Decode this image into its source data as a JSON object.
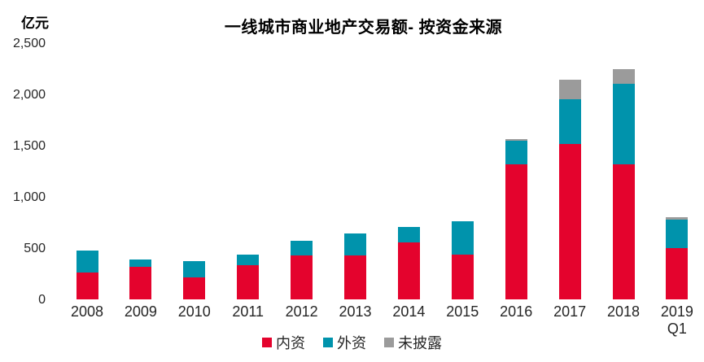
{
  "chart_data": {
    "type": "bar",
    "stacked": true,
    "title": "一线城市商业地产交易额- 按资金来源",
    "unit": "亿元",
    "grid": false,
    "legend_position": "bottom",
    "categories": [
      "2008",
      "2009",
      "2010",
      "2011",
      "2012",
      "2013",
      "2014",
      "2015",
      "2016",
      "2017",
      "2018",
      "2019\nQ1"
    ],
    "series": [
      {
        "name": "内资",
        "color": "#e4032d",
        "values": [
          265,
          315,
          215,
          330,
          430,
          430,
          555,
          440,
          1320,
          1515,
          1320,
          500
        ]
      },
      {
        "name": "外资",
        "color": "#0093ac",
        "values": [
          210,
          70,
          155,
          105,
          145,
          210,
          155,
          325,
          225,
          440,
          780,
          275
        ]
      },
      {
        "name": "未披露",
        "color": "#9b9b9b",
        "values": [
          0,
          0,
          0,
          0,
          0,
          0,
          0,
          0,
          15,
          190,
          145,
          30
        ]
      }
    ],
    "y_axis": {
      "max": 2500,
      "ticks": [
        {
          "label": "0",
          "value": 0
        },
        {
          "label": "500",
          "value": 500
        },
        {
          "label": "1,000",
          "value": 1000
        },
        {
          "label": "1,500",
          "value": 1500
        },
        {
          "label": "2,000",
          "value": 2000
        },
        {
          "label": "2,500",
          "value": 2500
        }
      ]
    }
  }
}
